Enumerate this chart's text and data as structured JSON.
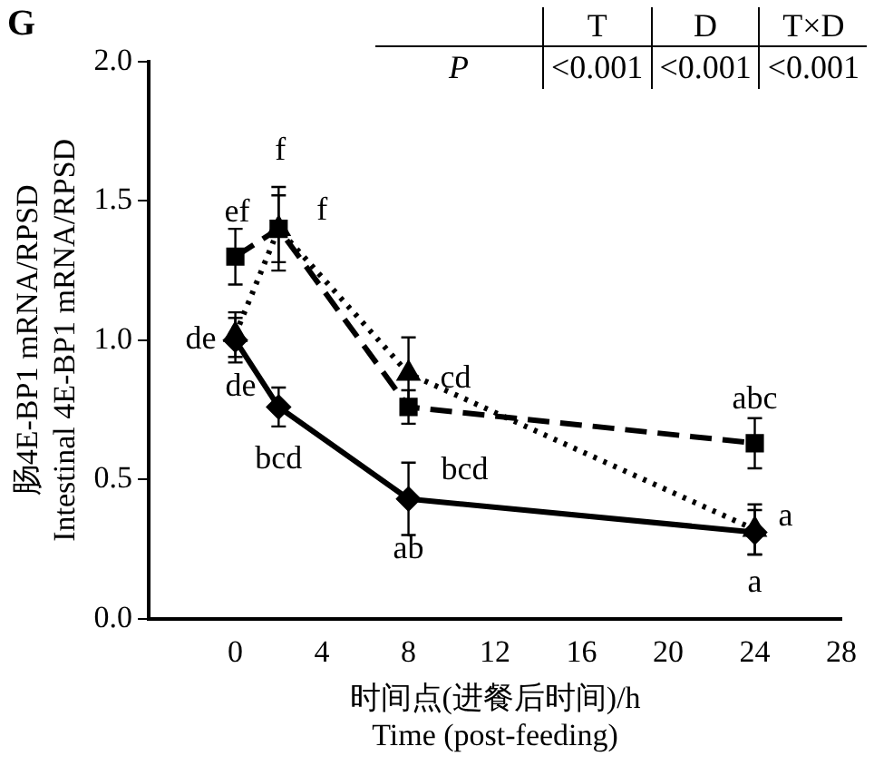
{
  "chart_data": {
    "type": "line",
    "title": "G",
    "xlabel": "时间点(进餐后时间)/h\nTime (post-feeding)",
    "ylabel": "肠4E-BP1 mRNA/RPSD\nIntestinal 4E-BP1 mRNA/RPSD",
    "x": [
      0,
      2,
      8,
      24
    ],
    "series": [
      {
        "color": "#000000",
        "values": [
          1.0,
          0.76,
          0.43,
          0.31
        ],
        "errors": [
          0.08,
          0.07,
          0.13,
          0.08
        ],
        "value_labels": [
          "de",
          "bcd",
          "ab",
          "a"
        ],
        "marker": "diamond",
        "line_style": "solid"
      },
      {
        "color": "#000000",
        "values": [
          1.3,
          1.4,
          0.76,
          0.63
        ],
        "errors": [
          0.1,
          0.15,
          0.06,
          0.09
        ],
        "value_labels": [
          "ef",
          "f",
          "bcd",
          "abc"
        ],
        "marker": "square",
        "line_style": "dashed"
      },
      {
        "color": "#000000",
        "values": [
          1.02,
          1.4,
          0.88,
          0.32
        ],
        "errors": [
          0.08,
          0.12,
          0.13,
          0.09
        ],
        "value_labels": [
          "de",
          "f",
          "cd",
          "a"
        ],
        "marker": "triangle",
        "line_style": "dotted"
      }
    ],
    "xlim": [
      -4,
      28
    ],
    "xticks": [
      0,
      4,
      8,
      12,
      16,
      20,
      24,
      28
    ],
    "ylim": [
      0,
      2
    ],
    "yticks": [
      {
        "value": 0,
        "label": "0.0"
      },
      {
        "value": 0.5,
        "label": "0.5"
      },
      {
        "value": 1,
        "label": "1.0"
      },
      {
        "value": 1.5,
        "label": "1.5"
      },
      {
        "value": 2,
        "label": "2.0"
      }
    ],
    "grid": false,
    "legend": false,
    "annotations": [
      "T",
      "D",
      "T×D",
      "P",
      "<0.001",
      "<0.001",
      "<0.001"
    ]
  }
}
